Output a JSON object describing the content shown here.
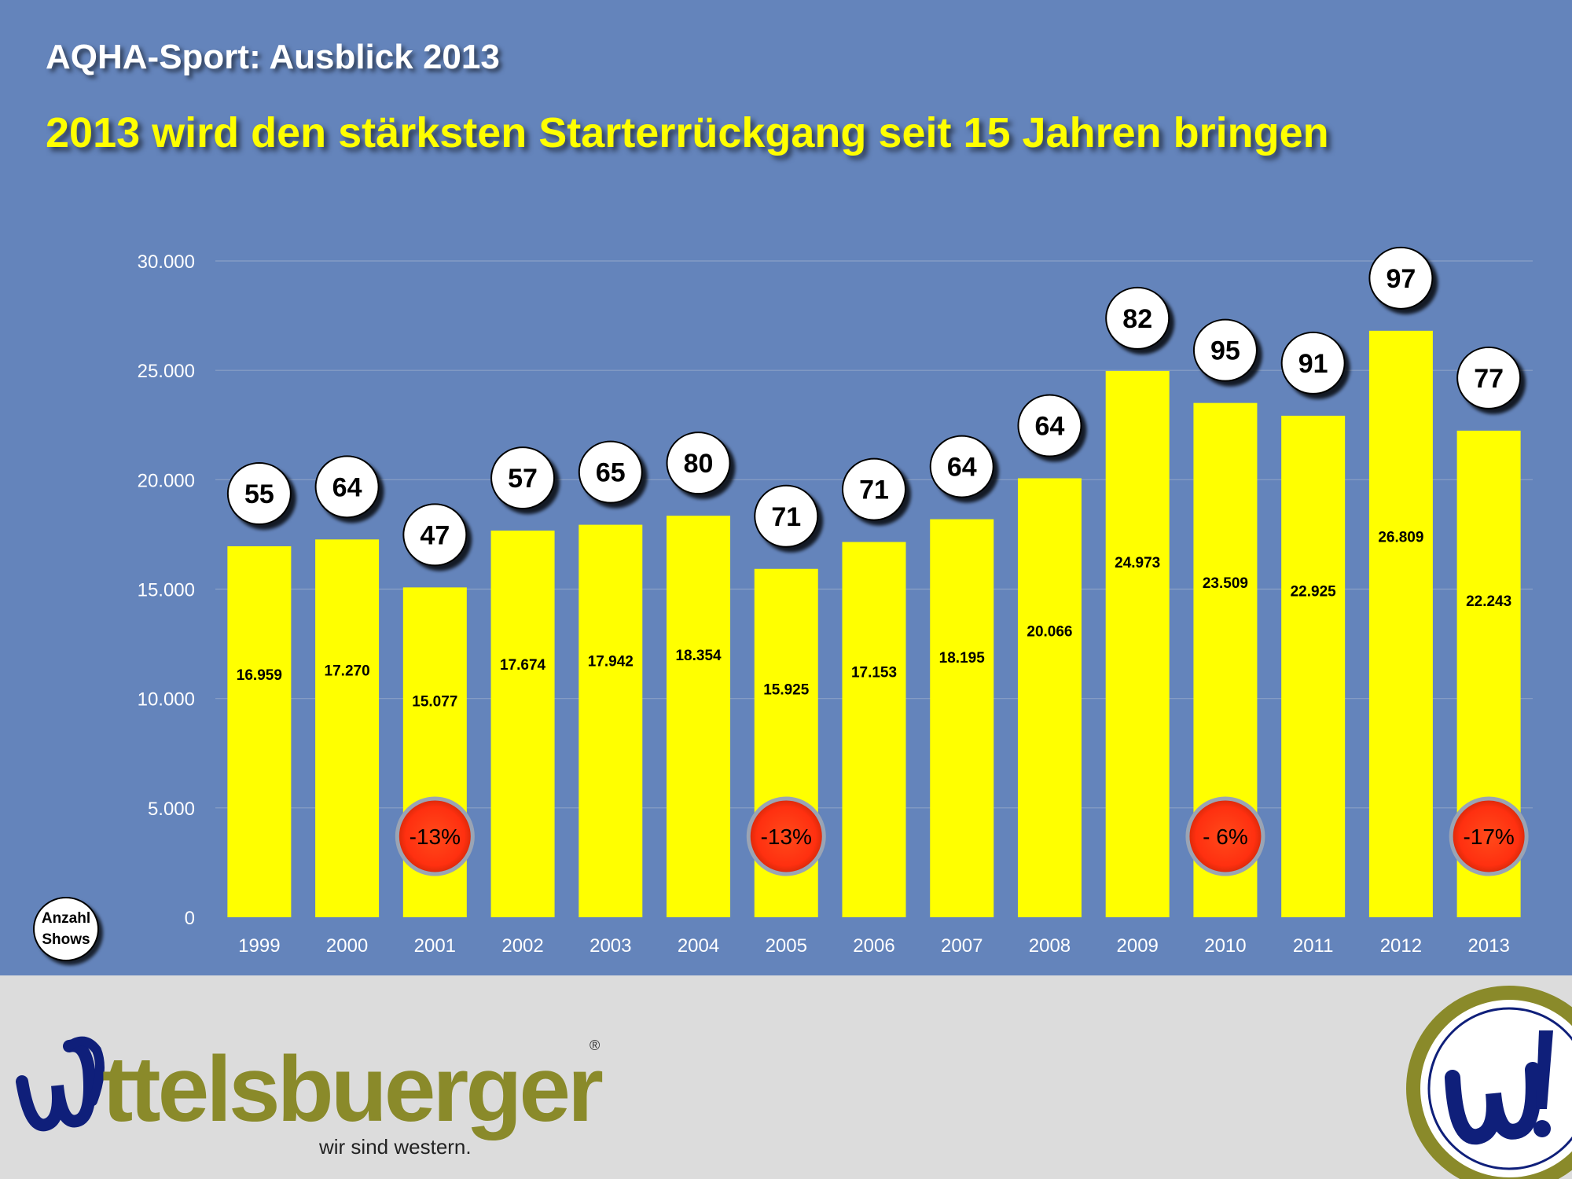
{
  "header": {
    "title": "AQHA-Sport: Ausblick 2013",
    "subtitle": "2013 wird den stärksten Starterrückgang seit 15 Jahren bringen"
  },
  "chart_data": {
    "type": "bar",
    "categories": [
      "1999",
      "2000",
      "2001",
      "2002",
      "2003",
      "2004",
      "2005",
      "2006",
      "2007",
      "2008",
      "2009",
      "2010",
      "2011",
      "2012",
      "2013"
    ],
    "series": [
      {
        "values": [
          16959,
          17270,
          15077,
          17674,
          17942,
          18354,
          15925,
          17153,
          18195,
          20066,
          24973,
          23509,
          22925,
          26809,
          22243
        ]
      }
    ],
    "value_labels": [
      "16.959",
      "17.270",
      "15.077",
      "17.674",
      "17.942",
      "18.354",
      "15.925",
      "17.153",
      "18.195",
      "20.066",
      "24.973",
      "23.509",
      "22.925",
      "26.809",
      "22.243"
    ],
    "show_counts": [
      55,
      64,
      47,
      57,
      65,
      80,
      71,
      71,
      64,
      64,
      82,
      95,
      91,
      97,
      77
    ],
    "show_counts_label": [
      "Anzahl",
      "Shows"
    ],
    "change_markers": [
      {
        "category": "2001",
        "label": "-13%"
      },
      {
        "category": "2005",
        "label": "-13%"
      },
      {
        "category": "2010",
        "label": "- 6%"
      },
      {
        "category": "2013",
        "label": "-17%"
      }
    ],
    "ylim": [
      0,
      30000
    ],
    "yticks": [
      0,
      5000,
      10000,
      15000,
      20000,
      25000,
      30000
    ],
    "ytick_labels": [
      "0",
      "5.000",
      "10.000",
      "15.000",
      "20.000",
      "25.000",
      "30.000"
    ],
    "grid": true,
    "colors": {
      "bar": "#ffff00",
      "background": "#6484bb",
      "marker": "#ff3c18"
    }
  },
  "footer": {
    "brand_name": "ttelsbuerger",
    "registered_mark": "®",
    "tagline": "wir sind western."
  },
  "colors": {
    "brand_olive": "#8a8a2a",
    "brand_navy": "#0f1f7a",
    "footer_bg": "#dcdcdc"
  },
  "icons": {
    "brand_logo": "wittelsbuerger-logo",
    "seal": "w-exclamation-seal-icon"
  }
}
